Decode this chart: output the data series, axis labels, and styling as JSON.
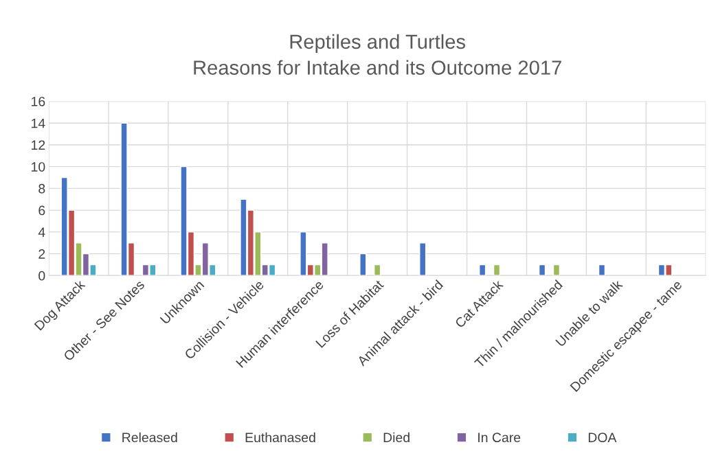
{
  "chart_data": {
    "type": "bar",
    "title": "Reptiles and Turtles\nReasons for Intake and its Outcome 2017",
    "categories": [
      "Dog Attack",
      "Other - See Notes",
      "Unknown",
      "Collision - Vehicle",
      "Human interference",
      "Loss of Habitat",
      "Animal attack - bird",
      "Cat Attack",
      "Thin / malnourished",
      "Unable to walk",
      "Domestic escapee - tame"
    ],
    "series": [
      {
        "name": "Released",
        "color": "#4472c4",
        "values": [
          9,
          14,
          10,
          7,
          4,
          2,
          3,
          1,
          1,
          1,
          1
        ]
      },
      {
        "name": "Euthanased",
        "color": "#c0504d",
        "values": [
          6,
          3,
          4,
          6,
          1,
          null,
          null,
          null,
          null,
          null,
          1
        ]
      },
      {
        "name": "Died",
        "color": "#9bbb59",
        "values": [
          3,
          null,
          1,
          4,
          1,
          1,
          null,
          1,
          1,
          null,
          null
        ]
      },
      {
        "name": "In Care",
        "color": "#8064a2",
        "values": [
          2,
          1,
          3,
          1,
          3,
          null,
          null,
          null,
          null,
          null,
          null
        ]
      },
      {
        "name": "DOA",
        "color": "#4bacc6",
        "values": [
          1,
          1,
          1,
          1,
          null,
          null,
          null,
          null,
          null,
          null,
          null
        ]
      }
    ],
    "ylim": [
      0,
      16
    ],
    "yticks": [
      0,
      2,
      4,
      6,
      8,
      10,
      12,
      14,
      16
    ],
    "grid": true,
    "legend": "bottom"
  }
}
